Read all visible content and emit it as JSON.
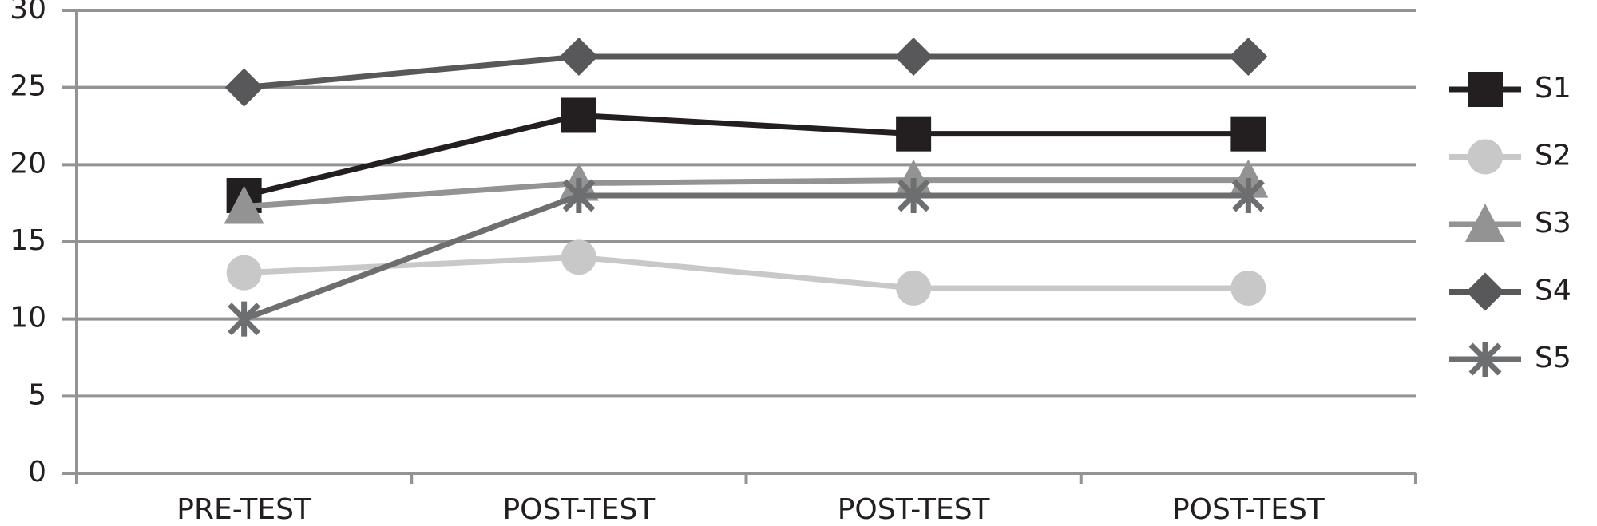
{
  "chart_data": {
    "type": "line",
    "categories": [
      "PRE-TEST",
      "POST-TEST",
      "POST-TEST",
      "POST-TEST"
    ],
    "series": [
      {
        "name": "S1",
        "color": "#231f20",
        "marker": "square",
        "values": [
          18,
          23.2,
          22,
          22
        ]
      },
      {
        "name": "S2",
        "color": "#c8c8c8",
        "marker": "circle",
        "values": [
          13,
          14,
          12,
          12
        ]
      },
      {
        "name": "S3",
        "color": "#939393",
        "marker": "triangle",
        "values": [
          17.3,
          18.8,
          19,
          19
        ]
      },
      {
        "name": "S4",
        "color": "#58585a",
        "marker": "diamond",
        "values": [
          25,
          27,
          27,
          27
        ]
      },
      {
        "name": "S5",
        "color": "#6d6e70",
        "marker": "asterisk",
        "values": [
          10,
          18,
          18,
          18
        ]
      }
    ],
    "ylim": [
      0,
      30
    ],
    "yticks": [
      0,
      5,
      10,
      15,
      20,
      25,
      30
    ],
    "grid": true,
    "legend": "right"
  }
}
